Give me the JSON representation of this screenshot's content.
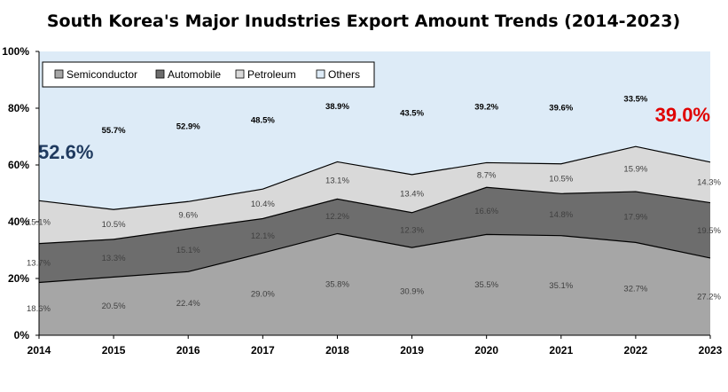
{
  "chart_data": {
    "type": "area",
    "stacked": true,
    "title": "South Korea's Major Inudstries Export Amount Trends (2014-2023)",
    "xlabel": "",
    "ylabel": "",
    "x": [
      "2014",
      "2015",
      "2016",
      "2017",
      "2018",
      "2019",
      "2020",
      "2021",
      "2022",
      "2023"
    ],
    "ylim": [
      0,
      100
    ],
    "yticks": [
      "0%",
      "20%",
      "40%",
      "60%",
      "80%",
      "100%"
    ],
    "legend_position": "top-left",
    "grid": false,
    "series": [
      {
        "name": "Semiconductor",
        "color": "#a6a6a6",
        "values": [
          18.6,
          20.5,
          22.4,
          29.0,
          35.8,
          30.9,
          35.5,
          35.1,
          32.7,
          27.2
        ],
        "labels": [
          "18.6%",
          "20.5%",
          "22.4%",
          "29.0%",
          "35.8%",
          "30.9%",
          "35.5%",
          "35.1%",
          "32.7%",
          "27.2%"
        ]
      },
      {
        "name": "Automobile",
        "color": "#6d6d6d",
        "values": [
          13.7,
          13.3,
          15.1,
          12.1,
          12.2,
          12.3,
          16.6,
          14.8,
          17.9,
          19.5
        ],
        "labels": [
          "13.7%",
          "13.3%",
          "15.1%",
          "12.1%",
          "12.2%",
          "12.3%",
          "16.6%",
          "14.8%",
          "17.9%",
          "19.5%"
        ]
      },
      {
        "name": "Petroleum",
        "color": "#d9d9d9",
        "values": [
          15.1,
          10.5,
          9.6,
          10.4,
          13.1,
          13.4,
          8.7,
          10.5,
          15.9,
          14.3
        ],
        "labels": [
          "15.1%",
          "10.5%",
          "9.6%",
          "10.4%",
          "13.1%",
          "13.4%",
          "8.7%",
          "10.5%",
          "15.9%",
          "14.3%"
        ]
      },
      {
        "name": "Others",
        "color": "#ddebf7",
        "values": [
          52.6,
          55.7,
          52.9,
          48.5,
          38.9,
          43.5,
          39.2,
          39.6,
          33.5,
          39.0
        ],
        "labels": [
          "",
          "55.7%",
          "52.9%",
          "48.5%",
          "38.9%",
          "43.5%",
          "39.2%",
          "39.6%",
          "33.5%",
          ""
        ]
      }
    ],
    "annotations": [
      {
        "text": "52.6%",
        "color": "#1f3a5f"
      },
      {
        "text": "39.0%",
        "color": "#e00000"
      }
    ]
  }
}
